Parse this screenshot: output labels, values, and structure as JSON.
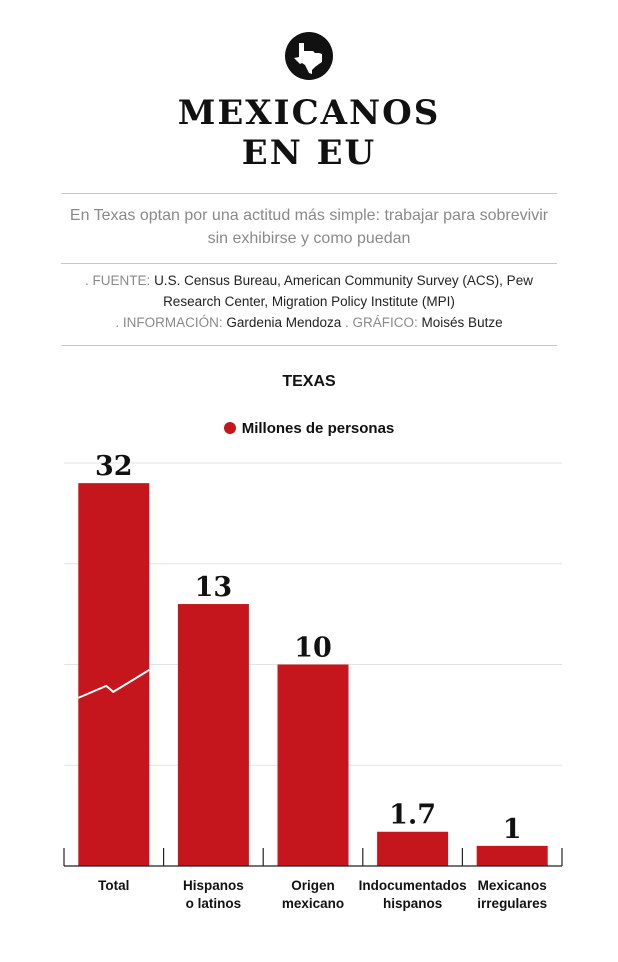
{
  "header": {
    "title_line1": "MEXICANOS",
    "title_line2": "EN EU",
    "subtitle": "En Texas optan por una actitud más simple: trabajar para sobrevivir sin exhibirse y como puedan",
    "source_label": ". FUENTE:",
    "source_text": "U.S. Census Bureau, American Community Survey (ACS), Pew Research Center, Migration Policy Institute (MPI)",
    "info_label": ". INFORMACIÓN:",
    "info_text": "Gardenia Mendoza",
    "graphic_label": ". GRÁFICO:",
    "graphic_text": "Moisés Butze",
    "logo_icon": "texas-map-icon"
  },
  "colors": {
    "bar": "#c4161c",
    "text": "#111111",
    "muted": "#8a8a8a"
  },
  "chart_data": {
    "type": "bar",
    "title": "TEXAS",
    "legend": [
      "Millones de personas"
    ],
    "categories": [
      [
        "Total"
      ],
      [
        "Hispanos",
        "o latinos"
      ],
      [
        "Origen",
        "mexicano"
      ],
      [
        "Indocumentados",
        "hispanos"
      ],
      [
        "Mexicanos",
        "irregulares"
      ]
    ],
    "values": [
      32,
      13,
      10,
      1.7,
      1
    ],
    "value_labels": [
      "32",
      "13",
      "10",
      "1.7",
      "1"
    ],
    "axis_break_on": "Total",
    "ylim": [
      0,
      20
    ],
    "grid": true,
    "xlabel": "",
    "ylabel": ""
  }
}
